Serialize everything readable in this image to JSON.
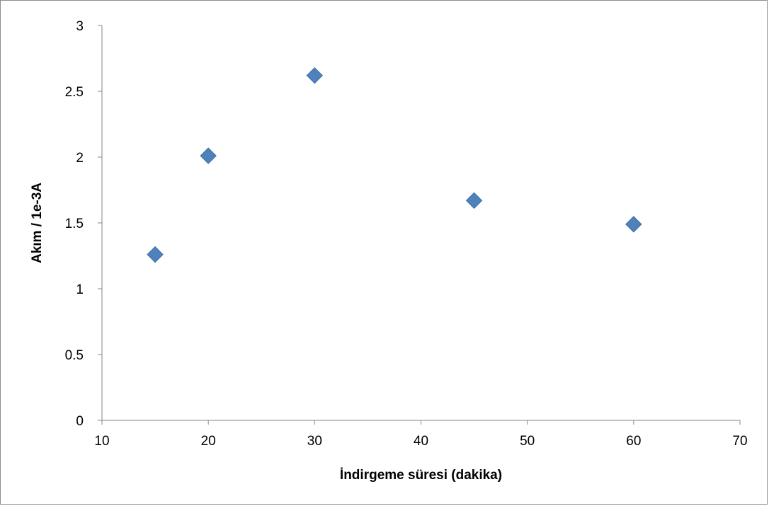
{
  "chart_data": {
    "type": "scatter",
    "title": "",
    "xlabel": "İndirgeme süresi (dakika)",
    "ylabel": "Akım / 1e-3A",
    "xlim": [
      10,
      70
    ],
    "ylim": [
      0,
      3
    ],
    "x_ticks": [
      10,
      20,
      30,
      40,
      50,
      60,
      70
    ],
    "y_ticks": [
      0,
      0.5,
      1,
      1.5,
      2,
      2.5,
      3
    ],
    "grid": false,
    "legend": "none",
    "marker": "diamond",
    "colors": {
      "marker_fill": "#4f81bd",
      "marker_stroke": "#3a6ea5",
      "axis": "#868686"
    },
    "series": [
      {
        "points": [
          {
            "x": 15,
            "y": 1.26
          },
          {
            "x": 20,
            "y": 2.01
          },
          {
            "x": 30,
            "y": 2.62
          },
          {
            "x": 45,
            "y": 1.67
          },
          {
            "x": 60,
            "y": 1.49
          }
        ]
      }
    ]
  }
}
